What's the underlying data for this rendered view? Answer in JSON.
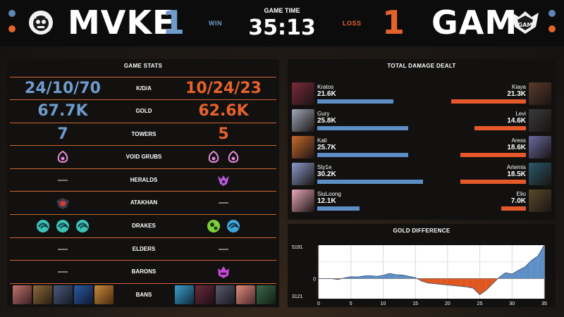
{
  "header": {
    "team_left": "MVKE",
    "team_right": "GAM",
    "score_left": "1",
    "score_right": "1",
    "result_left": "WIN",
    "result_right": "LOSS",
    "game_time_label": "GAME TIME",
    "game_time": "35:13",
    "colors": {
      "blue": "#5b87b8",
      "orange": "#e4632b"
    }
  },
  "game_stats": {
    "title": "GAME STATS",
    "rows": [
      {
        "label": "K/D/A",
        "left": "24/10/70",
        "right": "10/24/23"
      },
      {
        "label": "GOLD",
        "left": "67.7K",
        "right": "62.6K"
      },
      {
        "label": "TOWERS",
        "left": "7",
        "right": "5"
      },
      {
        "label": "VOID GRUBS",
        "left_icons": [
          "void-grub-icon"
        ],
        "right_icons": [
          "void-grub-icon",
          "void-grub-icon"
        ]
      },
      {
        "label": "HERALDS",
        "left": "—",
        "right_icons": [
          "herald-icon"
        ]
      },
      {
        "label": "ATAKHAN",
        "left_icons": [
          "atakhan-icon"
        ],
        "right": "—"
      },
      {
        "label": "DRAKES",
        "left_icons": [
          "ocean-drake-icon",
          "ocean-drake-icon",
          "ocean-drake-icon"
        ],
        "right_icons": [
          "chemtech-drake-icon",
          "ocean-drake-icon"
        ]
      },
      {
        "label": "ELDERS",
        "left": "—",
        "right": "—"
      },
      {
        "label": "BARONS",
        "left": "—",
        "right_icons": [
          "baron-icon"
        ]
      },
      {
        "label": "BANS"
      }
    ]
  },
  "damage": {
    "title": "TOTAL DAMAGE DEALT",
    "left": [
      {
        "name": "Kratos",
        "value": "21.6K",
        "fraction": 0.555
      },
      {
        "name": "Gury",
        "value": "25.8K",
        "fraction": 0.66
      },
      {
        "name": "Kati",
        "value": "25.7K",
        "fraction": 0.66
      },
      {
        "name": "Sty1e",
        "value": "30.2K",
        "fraction": 0.77
      },
      {
        "name": "SiuLoong",
        "value": "12.1K",
        "fraction": 0.31
      }
    ],
    "right": [
      {
        "name": "Kiaya",
        "value": "21.3K",
        "fraction": 0.545
      },
      {
        "name": "Levi",
        "value": "14.6K",
        "fraction": 0.375
      },
      {
        "name": "Aress",
        "value": "18.6K",
        "fraction": 0.475
      },
      {
        "name": "Artemis",
        "value": "18.5K",
        "fraction": 0.475
      },
      {
        "name": "Elio",
        "value": "7.0K",
        "fraction": 0.18
      }
    ]
  },
  "gold_diff": {
    "title": "GOLD DIFFERENCE",
    "max_label": "5191",
    "zero_label": "0",
    "min_label": "3121",
    "x_ticks": [
      "0",
      "5",
      "10",
      "15",
      "20",
      "25",
      "30",
      "35"
    ]
  },
  "chart_data": {
    "type": "area",
    "title": "GOLD DIFFERENCE",
    "xlabel": "",
    "ylabel": "",
    "xlim": [
      0,
      35
    ],
    "ylim": [
      -3121,
      5191
    ],
    "x": [
      0,
      2,
      3,
      4,
      5,
      6,
      7,
      8,
      9,
      10,
      11,
      12,
      13,
      14,
      15,
      16,
      17,
      18,
      19,
      20,
      21,
      22,
      23,
      24,
      25,
      26,
      27,
      28,
      29,
      30,
      31,
      32,
      33,
      34,
      35
    ],
    "values": [
      0,
      0,
      -150,
      100,
      300,
      250,
      400,
      450,
      350,
      500,
      800,
      600,
      550,
      350,
      150,
      -400,
      -700,
      -800,
      -900,
      -1000,
      -1100,
      -1200,
      -1300,
      -1500,
      -2500,
      -1800,
      -800,
      200,
      900,
      700,
      1300,
      1800,
      2800,
      3500,
      5191
    ],
    "grid": true
  }
}
